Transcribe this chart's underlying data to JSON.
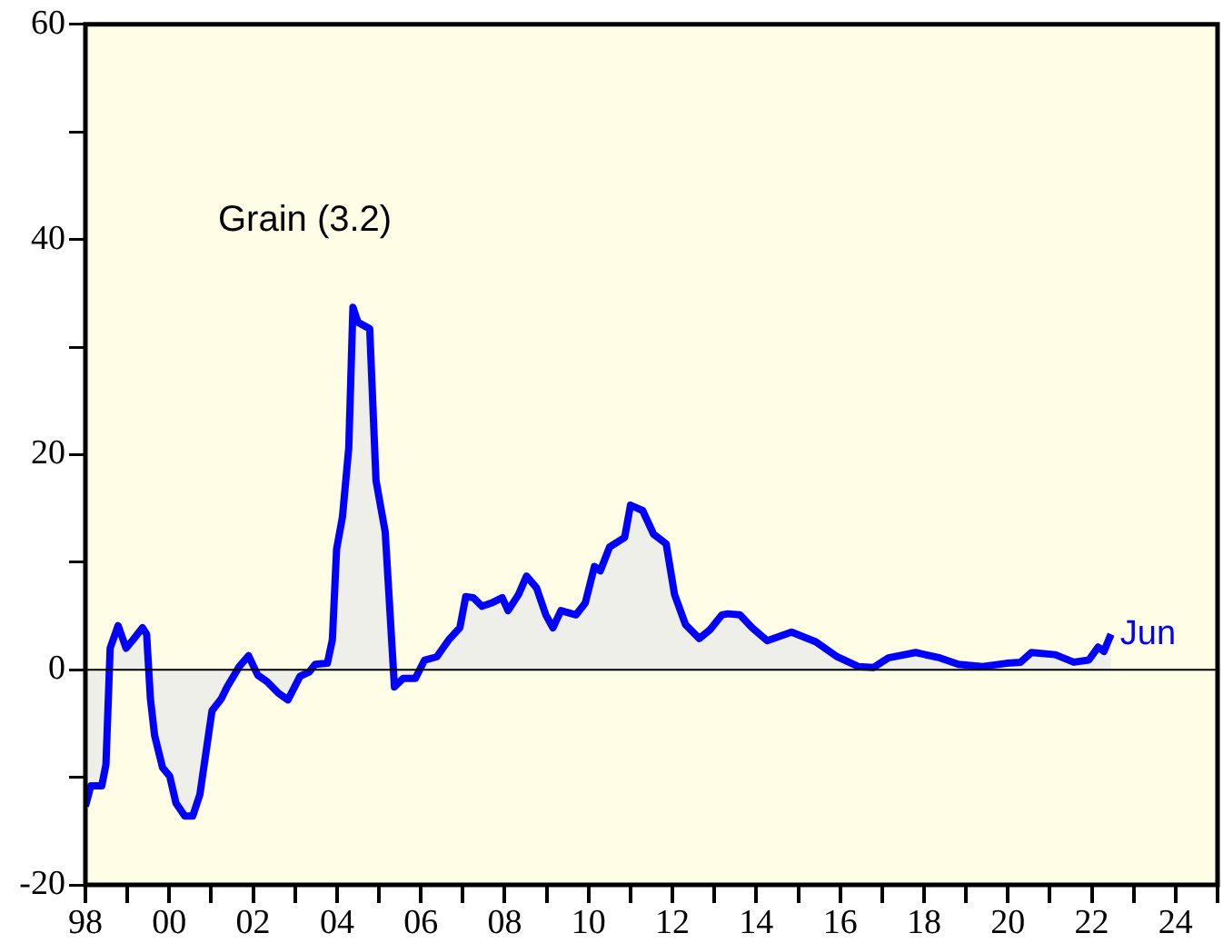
{
  "chart_data": {
    "type": "area",
    "annotations": [
      "Grain (3.2)",
      {
        "text": "Jun",
        "x": 2022.46,
        "y": 3.3
      }
    ],
    "xlim": [
      1998,
      2025
    ],
    "xticks": [
      {
        "value": 1998,
        "label": "98"
      },
      {
        "value": 1999,
        "label": null
      },
      {
        "value": 2000,
        "label": "00"
      },
      {
        "value": 2001,
        "label": null
      },
      {
        "value": 2002,
        "label": "02"
      },
      {
        "value": 2003,
        "label": null
      },
      {
        "value": 2004,
        "label": "04"
      },
      {
        "value": 2005,
        "label": null
      },
      {
        "value": 2006,
        "label": "06"
      },
      {
        "value": 2007,
        "label": null
      },
      {
        "value": 2008,
        "label": "08"
      },
      {
        "value": 2009,
        "label": null
      },
      {
        "value": 2010,
        "label": "10"
      },
      {
        "value": 2011,
        "label": null
      },
      {
        "value": 2012,
        "label": "12"
      },
      {
        "value": 2013,
        "label": null
      },
      {
        "value": 2014,
        "label": "14"
      },
      {
        "value": 2015,
        "label": null
      },
      {
        "value": 2016,
        "label": "16"
      },
      {
        "value": 2017,
        "label": null
      },
      {
        "value": 2018,
        "label": "18"
      },
      {
        "value": 2019,
        "label": null
      },
      {
        "value": 2020,
        "label": "20"
      },
      {
        "value": 2021,
        "label": null
      },
      {
        "value": 2022,
        "label": "22"
      },
      {
        "value": 2023,
        "label": null
      },
      {
        "value": 2024,
        "label": "24"
      },
      {
        "value": 2025,
        "label": null
      }
    ],
    "ylim": [
      -20,
      60
    ],
    "yticks": [
      -20,
      {
        "value": -10,
        "label": null
      },
      0,
      {
        "value": 10,
        "label": null
      },
      20,
      {
        "value": 30,
        "label": null
      },
      40,
      {
        "value": 50,
        "label": null
      },
      60
    ],
    "ref_lines": [
      {
        "axis": "y",
        "value": 0,
        "color": "#000000"
      }
    ],
    "grid": false,
    "legend": false,
    "series": [
      {
        "color": "#0000ff",
        "x": [
          1998.0,
          1998.13,
          1998.39,
          1998.49,
          1998.59,
          1998.78,
          1998.97,
          1999.14,
          1999.36,
          1999.46,
          1999.55,
          1999.65,
          1999.84,
          2000.01,
          2000.16,
          2000.37,
          2000.56,
          2000.73,
          2001.02,
          2001.24,
          2001.38,
          2001.67,
          2001.89,
          2002.11,
          2002.33,
          2002.61,
          2002.83,
          2003.12,
          2003.34,
          2003.48,
          2003.77,
          2003.89,
          2003.99,
          2004.13,
          2004.28,
          2004.38,
          2004.5,
          2004.78,
          2004.93,
          2005.15,
          2005.37,
          2005.58,
          2005.87,
          2006.09,
          2006.38,
          2006.67,
          2006.93,
          2007.07,
          2007.25,
          2007.46,
          2007.68,
          2007.94,
          2008.08,
          2008.33,
          2008.52,
          2008.76,
          2008.98,
          2009.15,
          2009.34,
          2009.7,
          2009.92,
          2010.14,
          2010.28,
          2010.5,
          2010.86,
          2011.0,
          2011.29,
          2011.55,
          2011.85,
          2012.05,
          2012.31,
          2012.64,
          2012.89,
          2013.18,
          2013.32,
          2013.61,
          2013.9,
          2014.26,
          2014.84,
          2015.42,
          2015.93,
          2016.43,
          2016.79,
          2017.15,
          2017.8,
          2018.38,
          2018.82,
          2019.4,
          2019.97,
          2020.3,
          2020.56,
          2021.13,
          2021.57,
          2021.93,
          2022.15,
          2022.29,
          2022.46
        ],
        "values": [
          -12.7,
          -10.8,
          -10.8,
          -8.8,
          2.0,
          4.1,
          2.0,
          2.8,
          3.9,
          3.3,
          -2.7,
          -6.1,
          -9.1,
          -9.9,
          -12.4,
          -13.6,
          -13.6,
          -11.6,
          -3.8,
          -2.7,
          -1.6,
          0.3,
          1.3,
          -0.5,
          -1.1,
          -2.2,
          -2.8,
          -0.6,
          -0.2,
          0.5,
          0.6,
          2.8,
          11.2,
          14.2,
          20.6,
          33.7,
          32.3,
          31.7,
          17.6,
          12.8,
          -1.6,
          -0.8,
          -0.8,
          0.9,
          1.2,
          2.8,
          3.9,
          6.8,
          6.7,
          5.9,
          6.2,
          6.7,
          5.5,
          7.0,
          8.7,
          7.6,
          5.1,
          3.9,
          5.5,
          5.1,
          6.2,
          9.6,
          9.2,
          11.4,
          12.3,
          15.3,
          14.8,
          12.6,
          11.7,
          7.0,
          4.2,
          2.9,
          3.7,
          5.1,
          5.2,
          5.1,
          3.9,
          2.7,
          3.5,
          2.6,
          1.2,
          0.3,
          0.2,
          1.1,
          1.6,
          1.1,
          0.5,
          0.3,
          0.6,
          0.7,
          1.6,
          1.4,
          0.7,
          0.9,
          2.1,
          1.7,
          3.3
        ]
      }
    ]
  }
}
